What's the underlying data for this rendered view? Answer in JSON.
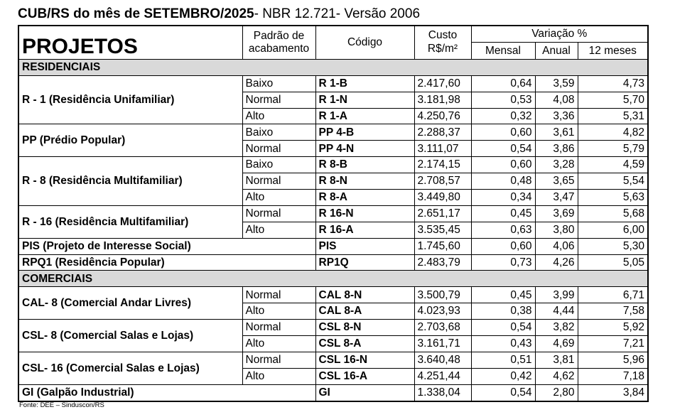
{
  "header": {
    "title_bold": "CUB/RS do mês de SETEMBRO/2025",
    "title_rest": "- NBR 12.721- Versão 2006"
  },
  "table": {
    "columns": {
      "projetos": "PROJETOS",
      "padrao": "Padrão de acabamento",
      "codigo": "Código",
      "custo": "Custo",
      "custo_unit": "R$/m²",
      "variacao": "Variação %",
      "mensal": "Mensal",
      "anual": "Anual",
      "doze": "12 meses"
    },
    "sections": [
      {
        "title": "RESIDENCIAIS",
        "groups": [
          {
            "name": "R - 1 (Residência Unifamiliar)",
            "rows": [
              {
                "padrao": "Baixo",
                "cells": [
                  "R 1-B",
                  "2.417,60",
                  "0,64",
                  "3,59",
                  "4,73"
                ]
              },
              {
                "padrao": "Normal",
                "cells": [
                  "R 1-N",
                  "3.181,98",
                  "0,53",
                  "4,08",
                  "5,70"
                ]
              },
              {
                "padrao": "Alto",
                "cells": [
                  "R 1-A",
                  "4.250,76",
                  "0,32",
                  "3,36",
                  "5,31"
                ]
              }
            ]
          },
          {
            "name": "PP (Prédio Popular)",
            "rows": [
              {
                "padrao": "Baixo",
                "cells": [
                  "PP 4-B",
                  "2.288,37",
                  "0,60",
                  "3,61",
                  "4,82"
                ]
              },
              {
                "padrao": "Normal",
                "cells": [
                  "PP 4-N",
                  "3.111,07",
                  "0,54",
                  "3,86",
                  "5,79"
                ]
              }
            ]
          },
          {
            "name": "R - 8 (Residência Multifamiliar)",
            "rows": [
              {
                "padrao": "Baixo",
                "cells": [
                  "R 8-B",
                  "2.174,15",
                  "0,60",
                  "3,28",
                  "4,59"
                ]
              },
              {
                "padrao": "Normal",
                "cells": [
                  "R 8-N",
                  "2.708,57",
                  "0,48",
                  "3,65",
                  "5,54"
                ]
              },
              {
                "padrao": "Alto",
                "cells": [
                  "R 8-A",
                  "3.449,80",
                  "0,34",
                  "3,47",
                  "5,63"
                ]
              }
            ]
          },
          {
            "name": "R - 16 (Residência Multifamiliar)",
            "rows": [
              {
                "padrao": "Normal",
                "cells": [
                  "R 16-N",
                  "2.651,17",
                  "0,45",
                  "3,69",
                  "5,68"
                ]
              },
              {
                "padrao": "Alto",
                "cells": [
                  "R 16-A",
                  "3.535,45",
                  "0,63",
                  "3,80",
                  "6,00"
                ]
              }
            ]
          },
          {
            "name": "PIS (Projeto de Interesse Social)",
            "rows": [
              {
                "cells": [
                  "PIS",
                  "1.745,60",
                  "0,60",
                  "4,06",
                  "5,30"
                ]
              }
            ]
          },
          {
            "name": "RPQ1 (Residência Popular)",
            "rows": [
              {
                "cells": [
                  "RP1Q",
                  "2.483,79",
                  "0,73",
                  "4,26",
                  "5,05"
                ]
              }
            ]
          }
        ]
      },
      {
        "title": "COMERCIAIS",
        "groups": [
          {
            "name": "CAL- 8 (Comercial Andar Livres)",
            "rows": [
              {
                "padrao": "Normal",
                "cells": [
                  "CAL 8-N",
                  "3.500,79",
                  "0,45",
                  "3,99",
                  "6,71"
                ]
              },
              {
                "padrao": "Alto",
                "cells": [
                  "CAL 8-A",
                  "4.023,93",
                  "0,38",
                  "4,44",
                  "7,58"
                ]
              }
            ]
          },
          {
            "name": "CSL- 8 (Comercial Salas e Lojas)",
            "rows": [
              {
                "padrao": "Normal",
                "cells": [
                  "CSL 8-N",
                  "2.703,68",
                  "0,54",
                  "3,82",
                  "5,92"
                ]
              },
              {
                "padrao": "Alto",
                "cells": [
                  "CSL 8-A",
                  "3.161,71",
                  "0,43",
                  "4,69",
                  "7,21"
                ]
              }
            ]
          },
          {
            "name": "CSL- 16 (Comercial Salas e Lojas)",
            "rows": [
              {
                "padrao": "Normal",
                "cells": [
                  "CSL 16-N",
                  "3.640,48",
                  "0,51",
                  "3,81",
                  "5,96"
                ]
              },
              {
                "padrao": "Alto",
                "cells": [
                  "CSL 16-A",
                  "4.251,44",
                  "0,42",
                  "4,62",
                  "7,18"
                ]
              }
            ]
          },
          {
            "name": "GI (Galpão Industrial)",
            "rows": [
              {
                "cells": [
                  "GI",
                  "1.338,04",
                  "0,54",
                  "2,80",
                  "3,84"
                ]
              }
            ]
          }
        ]
      }
    ]
  },
  "footer": {
    "source": "Fonte: DEE – Sinduscon/RS"
  }
}
